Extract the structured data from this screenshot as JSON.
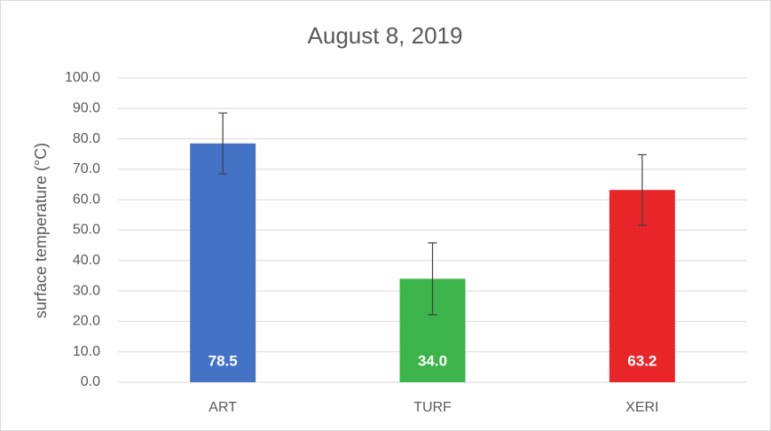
{
  "chart_data": {
    "type": "bar",
    "title": "August 8, 2019",
    "y_label": "surface temperature (°C)",
    "categories": [
      "ART",
      "TURF",
      "XERI"
    ],
    "values": [
      78.5,
      34,
      63.2
    ],
    "value_labels": [
      "78.5",
      "34.0",
      "63.2"
    ],
    "errors": [
      10,
      11.8,
      11.6
    ],
    "colors": [
      "#4472c4",
      "#3cb44b",
      "#e8262a"
    ],
    "ylim": [
      0,
      100
    ],
    "yticks": [
      {
        "value": 0,
        "label": "0.0"
      },
      {
        "value": 10,
        "label": "10.0"
      },
      {
        "value": 20,
        "label": "20.0"
      },
      {
        "value": 30,
        "label": "30.0"
      },
      {
        "value": 40,
        "label": "40.0"
      },
      {
        "value": 50,
        "label": "50.0"
      },
      {
        "value": 60,
        "label": "60.0"
      },
      {
        "value": 70,
        "label": "70.0"
      },
      {
        "value": 80,
        "label": "80.0"
      },
      {
        "value": 90,
        "label": "90.0"
      },
      {
        "value": 100,
        "label": "100.0"
      }
    ],
    "grid": true
  }
}
